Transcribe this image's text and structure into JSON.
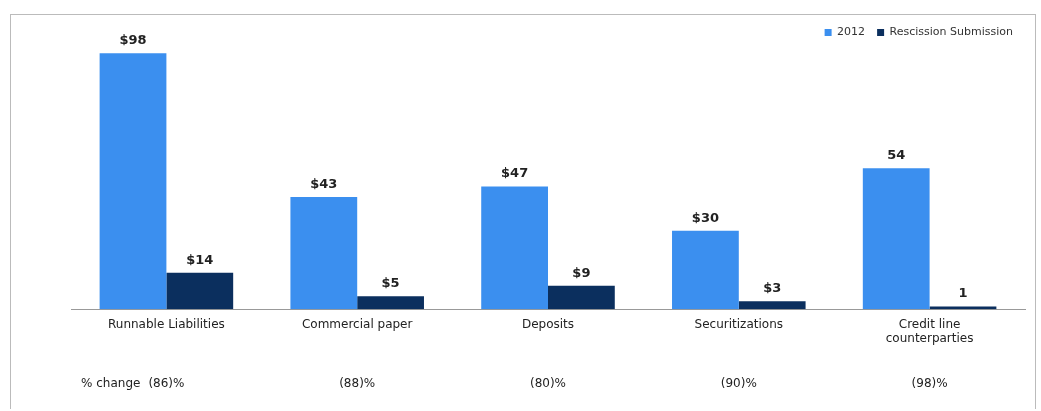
{
  "chart_data": {
    "type": "bar",
    "categories": [
      "Runnable Liabilities",
      "Commercial paper",
      "Deposits",
      "Securitizations",
      "Credit line counterparties"
    ],
    "series": [
      {
        "name": "2012",
        "color": "#3b8fef",
        "values": [
          98,
          43,
          47,
          30,
          54
        ],
        "value_labels": [
          "$98",
          "$43",
          "$47",
          "$30",
          "54"
        ]
      },
      {
        "name": "Rescission Submission",
        "color": "#0b2f5e",
        "values": [
          14,
          5,
          9,
          3,
          1
        ],
        "value_labels": [
          "$14",
          "$5",
          "$9",
          "$3",
          "1"
        ]
      }
    ],
    "legend": "top right",
    "grid": false,
    "annotations": [
      "% change",
      "(86)%",
      "(88)%",
      "(80)%",
      "(90)%",
      "(98)%"
    ]
  }
}
